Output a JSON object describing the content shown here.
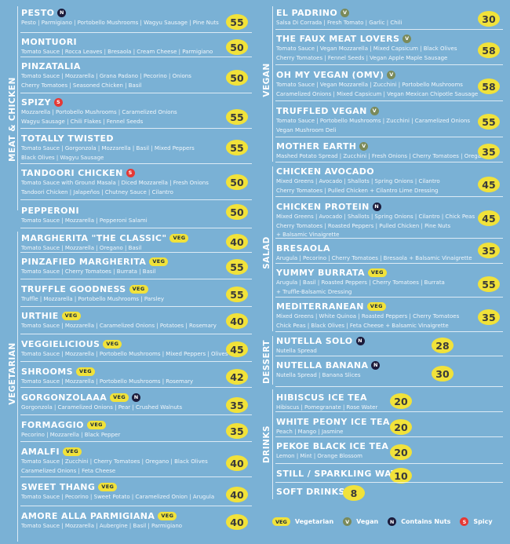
{
  "sections": {
    "meat_chicken": "MEAT & CHICKEN",
    "vegetarian": "VEGETARIAN",
    "vegan": "VEGAN",
    "salad": "SALAD",
    "dessert": "DESSERT",
    "drinks": "DRINKS"
  },
  "left_items": [
    {
      "name": "PESTO",
      "badge": "N",
      "desc": [
        "Pesto | Parmigiano | Portobello Mushrooms | Wagyu Sausage | Pine Nuts"
      ],
      "price": "55"
    },
    {
      "name": "MONTUORI",
      "badge": "",
      "desc": [
        "Tomato Sauce | Rocca Leaves | Bresaola | Cream Cheese | Parmigiano"
      ],
      "price": "50"
    },
    {
      "name": "PINZATALIA",
      "badge": "",
      "desc": [
        "Tomato Sauce | Mozzarella | Grana Padano | Pecorino | Onions",
        "Cherry Tomatoes | Seasoned Chicken | Basil"
      ],
      "price": "50"
    },
    {
      "name": "SPIZY",
      "badge": "S",
      "desc": [
        "Mozzarella | Portobello Mushrooms | Caramelized Onions",
        "Wagyu Sausage | Chili Flakes | Fennel Seeds"
      ],
      "price": "55"
    },
    {
      "name": "TOTALLY TWISTED",
      "badge": "",
      "desc": [
        "Tomato Sauce | Gorgonzola | Mozzarella | Basil | Mixed Peppers",
        "Black Olives | Wagyu Sausage"
      ],
      "price": "55"
    },
    {
      "name": "TANDOORI CHICKEN",
      "badge": "S",
      "desc": [
        "Tomato Sauce with Ground Masala | Diced Mozzarella | Fresh Onions",
        "Tandoori Chicken | Jalapeños | Chutney Sauce | Cilantro"
      ],
      "price": "50"
    },
    {
      "name": "PEPPERONI",
      "badge": "",
      "desc": [
        "Tomato Sauce | Mozzarella | Pepperoni Salami"
      ],
      "price": "50"
    },
    {
      "name": "MARGHERITA \"THE CLASSIC\"",
      "badge": "VEG",
      "desc": [
        "Tomato Sauce | Mozzarella | Oregano | Basil"
      ],
      "price": "40"
    },
    {
      "name": "PINZAFIED MARGHERITA",
      "badge": "VEG",
      "desc": [
        "Tomato Sauce | Cherry Tomatoes | Burrata | Basil"
      ],
      "price": "55"
    },
    {
      "name": "TRUFFLE GOODNESS",
      "badge": "VEG",
      "desc": [
        "Truffle | Mozzarella | Portobello Mushrooms | Parsley"
      ],
      "price": "55"
    },
    {
      "name": "URTHIE",
      "badge": "VEG",
      "desc": [
        "Tomato Sauce | Mozzarella | Caramelized Onions | Potatoes | Rosemary"
      ],
      "price": "40"
    },
    {
      "name": "VEGGIELICIOUS",
      "badge": "VEG",
      "desc": [
        "Tomato Sauce | Mozzarella | Portobello Mushrooms | Mixed Peppers | Olives"
      ],
      "price": "45"
    },
    {
      "name": "SHROOMS",
      "badge": "VEG",
      "desc": [
        "Tomato Sauce | Mozzarella | Portobello Mushrooms | Rosemary"
      ],
      "price": "42"
    },
    {
      "name": "GORGONZOLAAA",
      "badge": "VEG",
      "badge2": "N",
      "desc": [
        "Gorgonzola | Caramelized Onions | Pear | Crushed Walnuts"
      ],
      "price": "35"
    },
    {
      "name": "FORMAGGIO",
      "badge": "VEG",
      "desc": [
        "Pecorino | Mozzarella | Black Pepper"
      ],
      "price": "35"
    },
    {
      "name": "AMALFI",
      "badge": "VEG",
      "desc": [
        "Tomato Sauce | Zucchini | Cherry Tomatoes | Oregano | Black Olives",
        "Caramelized Onions | Feta Cheese"
      ],
      "price": "40"
    },
    {
      "name": "SWEET THANG",
      "badge": "VEG",
      "desc": [
        "Tomato Sauce | Pecorino | Sweet Potato | Caramelized Onion | Arugula"
      ],
      "price": "40"
    },
    {
      "name": "AMORE ALLA PARMIGIANA",
      "badge": "VEG",
      "desc": [
        "Tomato Sauce | Mozzarella | Aubergine | Basil | Parmigiano"
      ],
      "price": "40"
    }
  ],
  "right_items": [
    {
      "name": "EL PADRINO",
      "badge": "V",
      "desc": [
        "Salsa Di Corrada | Fresh Tomato | Garlic | Chili"
      ],
      "price": "30"
    },
    {
      "name": "THE FAUX MEAT LOVERS",
      "badge": "V",
      "desc": [
        "Tomato Sauce | Vegan Mozzarella | Mixed Capsicum | Black Olives",
        "Cherry Tomatoes | Fennel Seeds | Vegan Apple Maple Sausage"
      ],
      "price": "58"
    },
    {
      "name": "OH MY VEGAN (OMV)",
      "badge": "V",
      "desc": [
        "Tomato Sauce | Vegan Mozzarella | Zucchini | Portobello Mushrooms",
        "Caramelized Onions | Mixed Capsicum | Vegan Mexican Chipotle Sausage"
      ],
      "price": "58"
    },
    {
      "name": "TRUFFLED VEGAN",
      "badge": "V",
      "desc": [
        "Tomato Sauce | Portobello Mushrooms | Zucchini | Caramelized Onions",
        "Vegan Mushroom Deli"
      ],
      "price": "55"
    },
    {
      "name": "MOTHER EARTH",
      "badge": "V",
      "desc": [
        "Mashed Potato Spread | Zucchini | Fresh Onions | Cherry Tomatoes | Oregano"
      ],
      "price": "35"
    },
    {
      "name": "CHICKEN AVOCADO",
      "badge": "",
      "desc": [
        "Mixed Greens | Avocado | Shallots | Spring Onions | Cilantro",
        "Cherry Tomatoes | Pulled Chicken + Cilantro Lime Dressing"
      ],
      "price": "45"
    },
    {
      "name": "CHICKEN PROTEIN",
      "badge": "N",
      "desc": [
        "Mixed Greens | Avocado | Shallots | Spring Onions | Cilantro | Chick Peas",
        "Cherry Tomatoes | Roasted Peppers | Pulled Chicken | Pine Nuts",
        "+ Balsamic Vinaigrette"
      ],
      "price": "45"
    },
    {
      "name": "BRESAOLA",
      "badge": "",
      "desc": [
        "Arugula | Pecorino | Cherry Tomatoes | Bresaola + Balsamic Vinaigrette"
      ],
      "price": "35"
    },
    {
      "name": "YUMMY BURRATA",
      "badge": "VEG",
      "desc": [
        "Arugula | Basil | Roasted Peppers | Cherry Tomatoes | Burrata",
        "+ Truffle-Balsamic Dressing"
      ],
      "price": "55"
    },
    {
      "name": "MEDITERRANEAN",
      "badge": "VEG",
      "desc": [
        "Mixed Greens | White Quinoa | Roasted Peppers | Cherry Tomatoes",
        "Chick Peas | Black Olives | Feta Cheese + Balsamic Vinaigrette"
      ],
      "price": "35"
    },
    {
      "name": "NUTELLA SOLO",
      "badge": "N",
      "desc": [
        "Nutella Spread"
      ],
      "price": "28"
    },
    {
      "name": "NUTELLA BANANA",
      "badge": "N",
      "desc": [
        "Nutella Spread | Banana Slices"
      ],
      "price": "30"
    },
    {
      "name": "HIBISCUS ICE TEA",
      "badge": "",
      "desc": [
        "Hibiscus | Pomegranate | Rose Water"
      ],
      "price": "20"
    },
    {
      "name": "WHITE PEONY ICE TEA",
      "badge": "",
      "desc": [
        "Peach | Mango | Jasmine"
      ],
      "price": "20"
    },
    {
      "name": "PEKOE BLACK ICE TEA",
      "badge": "",
      "desc": [
        "Lemon | Mint | Orange Blossom"
      ],
      "price": "20"
    },
    {
      "name": "STILL / SPARKLING WATER",
      "badge": "",
      "desc": [],
      "price": "10"
    },
    {
      "name": "SOFT DRINKS",
      "badge": "",
      "desc": [],
      "price": "8"
    }
  ],
  "legend": {
    "veg_badge": "VEG",
    "veg_label": "Vegetarian",
    "vegan_badge": "V",
    "vegan_label": "Vegan",
    "nuts_badge": "N",
    "nuts_label": "Contains Nuts",
    "spicy_badge": "S",
    "spicy_label": "Spicy"
  }
}
